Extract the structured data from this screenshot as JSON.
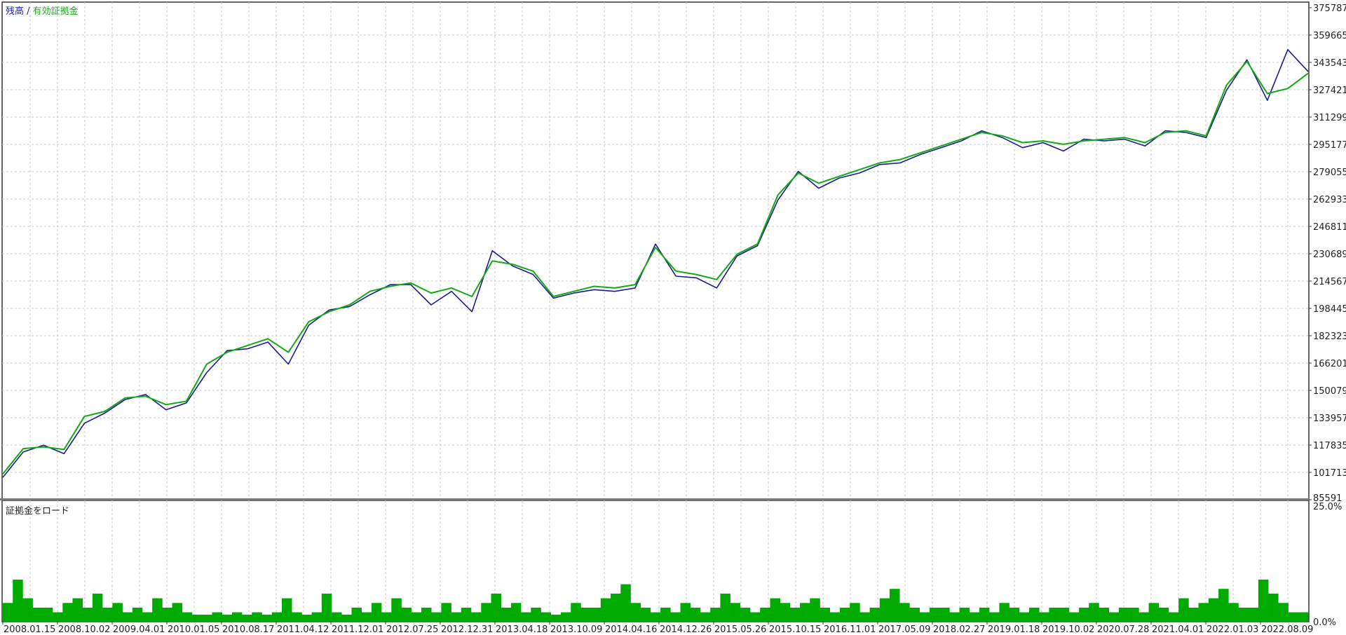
{
  "legend": {
    "balance": "残高",
    "separator": " / ",
    "equity": "有効証拠金"
  },
  "colors": {
    "balance": "#1a1a99",
    "equity": "#11aa11",
    "margin_bars": "#00aa00",
    "grid": "#c8c8c8",
    "frame": "#333333",
    "separator": "#7a7a7a"
  },
  "chart_data": [
    {
      "type": "line",
      "series": [
        {
          "name": "残高",
          "values": [
            100000,
            115000,
            116000,
            114500,
            134000,
            137000,
            145000,
            146000,
            141000,
            143000,
            165000,
            172000,
            176000,
            180000,
            172000,
            190000,
            196000,
            200000,
            208000,
            211000,
            213000,
            207000,
            210000,
            205000,
            226000,
            224000,
            220000,
            205000,
            208000,
            211000,
            210000,
            212000,
            234000,
            220000,
            218000,
            215000,
            230000,
            236000,
            265000,
            278000,
            272000,
            276000,
            280000,
            284000,
            286000,
            290000,
            294000,
            298000,
            302000,
            300000,
            296000,
            297000,
            295000,
            297000,
            298000,
            299000,
            296000,
            302000,
            303000,
            300000,
            330000,
            344000,
            325000,
            328000,
            337000
          ]
        },
        {
          "name": "有効証拠金",
          "values": [
            98000,
            113000,
            117000,
            112000,
            130000,
            136000,
            144000,
            147000,
            138000,
            142000,
            160000,
            173000,
            174000,
            178000,
            165000,
            188000,
            197000,
            199000,
            206000,
            212000,
            212000,
            200000,
            208000,
            196000,
            232000,
            223000,
            218000,
            204000,
            207000,
            209000,
            208000,
            210000,
            236000,
            217000,
            216000,
            210000,
            229000,
            235000,
            262000,
            279000,
            269000,
            275000,
            278000,
            283000,
            284000,
            289000,
            293000,
            297000,
            303000,
            299000,
            293000,
            296000,
            291000,
            298000,
            297000,
            298000,
            294000,
            303000,
            302000,
            299000,
            327000,
            345000,
            321000,
            351000,
            338000
          ]
        }
      ],
      "xticks": [
        "2008.01.15",
        "2008.10.02",
        "2009.04.01",
        "2010.01.05",
        "2010.08.17",
        "2011.04.12",
        "2011.12.01",
        "2012.07.25",
        "2012.12.31",
        "2013.04.18",
        "2013.10.09",
        "2014.04.16",
        "2014.12.26",
        "2015.05.26",
        "2015.10.15",
        "2016.11.01",
        "2017.05.09",
        "2018.02.27",
        "2019.01.18",
        "2019.10.02",
        "2020.07.28",
        "2021.04.01",
        "2022.01.03",
        "2022.08.09"
      ],
      "yticks": [
        "375787",
        "359665",
        "343543",
        "327421",
        "311299",
        "295177",
        "279055",
        "262933",
        "246811",
        "230689",
        "214567",
        "198445",
        "182323",
        "166201",
        "150079",
        "133957",
        "117835",
        "101713",
        "85591"
      ],
      "ylim": [
        85591,
        375787
      ],
      "grid": true
    },
    {
      "type": "bar",
      "title": "証拠金をロード",
      "ylim": [
        0,
        25
      ],
      "yticks": [
        "25.0%",
        "0.0%"
      ],
      "values": [
        4,
        9,
        5,
        3,
        3,
        2,
        4,
        5,
        3,
        6,
        3,
        4,
        2,
        3,
        2,
        5,
        3,
        4,
        2,
        1.5,
        1.5,
        2,
        1.5,
        2,
        1.5,
        2,
        1.5,
        2,
        5,
        2,
        1.5,
        2,
        6,
        2,
        1.5,
        3,
        2,
        4,
        2,
        5,
        3,
        2,
        3,
        2,
        4,
        2,
        3,
        2,
        4,
        6,
        3,
        4,
        2,
        3,
        2,
        1.5,
        2,
        4,
        3,
        3,
        5,
        6,
        8,
        4,
        3,
        2,
        3,
        2,
        4,
        3,
        2,
        3,
        6,
        4,
        3,
        2,
        3,
        5,
        4,
        3,
        4,
        5,
        3,
        2,
        3,
        4,
        2,
        3,
        5,
        7,
        4,
        3,
        2,
        3,
        3,
        2,
        3,
        2,
        3,
        2,
        4,
        3,
        2,
        3,
        2,
        3,
        3,
        2,
        3,
        4,
        3,
        2,
        3,
        3,
        2,
        4,
        3,
        2,
        5,
        3,
        4,
        5,
        7,
        4,
        3,
        3,
        9,
        6,
        4,
        2,
        2
      ]
    }
  ]
}
